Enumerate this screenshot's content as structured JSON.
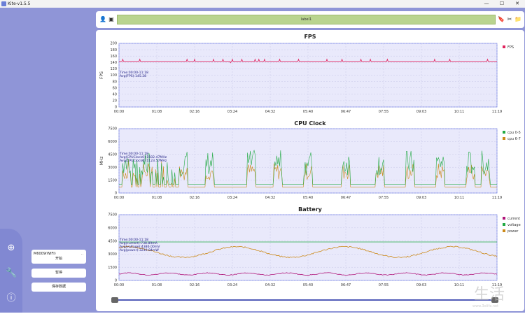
{
  "window": {
    "title": "Kite-v1.5.5",
    "minimize": "—",
    "maximize": "☐",
    "close": "✕"
  },
  "toolbar": {
    "label": "label1",
    "icons": [
      "person-icon",
      "image-icon",
      "bookmark-icon",
      "scissors-icon",
      "folder-icon"
    ]
  },
  "sidebar": {
    "device": "M6009(WIFI)",
    "start_label": "开始",
    "pause_label": "暂停",
    "save_label": "保存数据",
    "rail_icons": [
      "add-icon",
      "wrench-icon",
      "info-icon"
    ]
  },
  "x_ticks": [
    "00:00",
    "01:08",
    "02:16",
    "03:24",
    "04:32",
    "05:40",
    "06:47",
    "07:55",
    "09:03",
    "10:11",
    "11:19"
  ],
  "chart_data": [
    {
      "type": "line",
      "title": "FPS",
      "ylabel": "FPS",
      "ylim": [
        0,
        200
      ],
      "y_ticks": [
        0,
        20,
        40,
        60,
        80,
        100,
        120,
        140,
        160,
        180,
        200
      ],
      "legend": "top-right",
      "info": [
        "Time:00:00-11:18",
        "Avg(FPS):145.28"
      ],
      "series": [
        {
          "name": "FPS",
          "color": "#e0245e",
          "baseline": 143,
          "spikes": [
            [
              0.01,
              150
            ],
            [
              0.055,
              150
            ],
            [
              0.18,
              150
            ],
            [
              0.2,
              150
            ],
            [
              0.25,
              150
            ],
            [
              0.275,
              150
            ],
            [
              0.295,
              139
            ],
            [
              0.3,
              150
            ],
            [
              0.325,
              150
            ],
            [
              0.37,
              150
            ],
            [
              0.385,
              150
            ],
            [
              0.36,
              150
            ],
            [
              0.425,
              150
            ],
            [
              0.475,
              150
            ],
            [
              0.55,
              150
            ],
            [
              0.59,
              150
            ],
            [
              0.64,
              150
            ],
            [
              0.665,
              150
            ],
            [
              0.71,
              150
            ],
            [
              0.835,
              150
            ],
            [
              0.875,
              150
            ],
            [
              0.975,
              150
            ]
          ]
        }
      ]
    },
    {
      "type": "line",
      "title": "CPU Clock",
      "ylabel": "MHz",
      "ylim": [
        0,
        7500
      ],
      "y_ticks": [
        0,
        1500,
        3000,
        4500,
        6000,
        7500
      ],
      "legend": "top-right",
      "info": [
        "Time:00:00-11:18",
        "Avg(CPUClock0):1502.47MHz",
        "Avg(CPUClock6):1123.57MHz"
      ],
      "series": [
        {
          "name": "cpu 0-5",
          "color": "#22aa44"
        },
        {
          "name": "cpu 6-7",
          "color": "#cc8a1a"
        }
      ]
    },
    {
      "type": "line",
      "title": "Battery",
      "ylim": [
        0,
        7500
      ],
      "y_ticks": [
        0,
        1500,
        3000,
        4500,
        6000,
        7500
      ],
      "legend": "top-right",
      "info": [
        "Time:00:00-11:18",
        "Avg(current):738.89mA",
        "Avg(voltage):4386.00mV",
        "Avg(power):3239.84mW"
      ],
      "series": [
        {
          "name": "current",
          "color": "#b0157a",
          "avg": 738.89
        },
        {
          "name": "voltage",
          "color": "#22aa44",
          "avg": 4386.0
        },
        {
          "name": "power",
          "color": "#cc8a1a",
          "avg": 3239.84
        }
      ]
    }
  ],
  "scrubber": {
    "start": 0.0,
    "end": 1.0
  },
  "watermark": {
    "text": "生活",
    "sub": "www.3elife.net"
  }
}
